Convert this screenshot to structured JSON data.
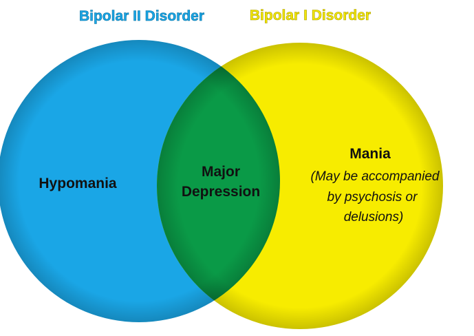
{
  "titles": {
    "left": "Bipolar II Disorder",
    "right": "Bipolar I Disorder"
  },
  "regions": {
    "left_label": "Hypomania",
    "center_line1": "Major",
    "center_line2": "Depression",
    "right_label": "Mania",
    "right_note_line1": "(May be accompanied",
    "right_note_line2": "by psychosis or",
    "right_note_line3": "delusions)"
  },
  "colors": {
    "left_circle": "#1aa6e6",
    "right_circle": "#f7ec00",
    "overlap": "#0a9a47",
    "left_title": "#1aa6e6",
    "right_title": "#f2e600"
  }
}
